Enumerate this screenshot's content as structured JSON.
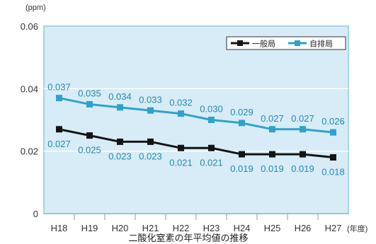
{
  "chart_data": {
    "type": "line",
    "title": "二酸化窒素の年平均値の推移",
    "ylabel": "(ppm)",
    "xlabel": "(年度)",
    "categories": [
      "H18",
      "H19",
      "H20",
      "H21",
      "H22",
      "H23",
      "H24",
      "H25",
      "H26",
      "H27"
    ],
    "ylim": [
      0,
      0.06
    ],
    "yticks": [
      0,
      0.02,
      0.04,
      0.06
    ],
    "grid": true,
    "legend": "top-right",
    "series": [
      {
        "name": "一般局",
        "color": "#141414",
        "values": [
          0.027,
          0.025,
          0.023,
          0.023,
          0.021,
          0.021,
          0.019,
          0.019,
          0.019,
          0.018
        ]
      },
      {
        "name": "自排局",
        "color": "#2ea2cb",
        "values": [
          0.037,
          0.035,
          0.034,
          0.033,
          0.032,
          0.03,
          0.029,
          0.027,
          0.027,
          0.026
        ]
      }
    ],
    "data_label_color": "#2489ae",
    "plot_background": "#d7ecf6"
  }
}
